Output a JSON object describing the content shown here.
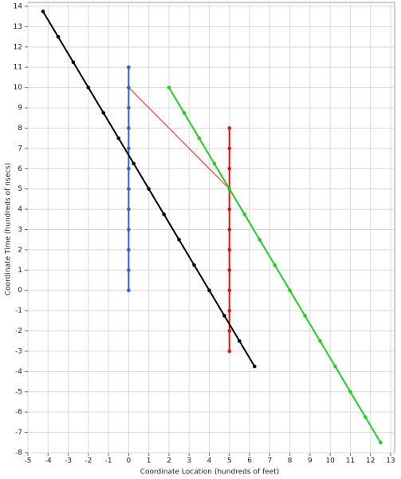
{
  "chart_data": {
    "type": "line",
    "xlabel": "Coordinate Location (hundreds of feet)",
    "ylabel": "Coordinate Time (hundreds of nsecs)",
    "xlim": [
      -5,
      13
    ],
    "ylim": [
      -8,
      14
    ],
    "xticks": [
      -5,
      -4,
      -3,
      -2,
      -1,
      0,
      1,
      2,
      3,
      4,
      5,
      6,
      7,
      8,
      9,
      10,
      11,
      12,
      13
    ],
    "yticks": [
      -8,
      -7,
      -6,
      -5,
      -4,
      -3,
      -2,
      -1,
      0,
      1,
      2,
      3,
      4,
      5,
      6,
      7,
      8,
      9,
      10,
      11,
      12,
      13,
      14
    ],
    "grid": true,
    "series": [
      {
        "color": "#ff2020",
        "width": 1,
        "markers": false,
        "x": [
          0,
          5
        ],
        "values": [
          10,
          5
        ]
      },
      {
        "color": "#2f62c8",
        "width": 2,
        "markers": true,
        "x": [
          0,
          0,
          0,
          0,
          0,
          0,
          0,
          0,
          0,
          0,
          0,
          0
        ],
        "values": [
          0,
          1,
          2,
          3,
          4,
          5,
          6,
          7,
          8,
          9,
          10,
          11
        ]
      },
      {
        "color": "#e81010",
        "width": 2,
        "markers": true,
        "x": [
          5,
          5,
          5,
          5,
          5,
          5,
          5,
          5,
          5,
          5,
          5,
          5
        ],
        "values": [
          -3,
          -2,
          -1,
          0,
          1,
          2,
          3,
          4,
          5,
          6,
          7,
          8
        ]
      },
      {
        "color": "#000000",
        "width": 2,
        "markers": true,
        "x": [
          -4.25,
          -3.5,
          -2.75,
          -2,
          -1.25,
          -0.5,
          0.25,
          1,
          1.75,
          2.5,
          3.25,
          4,
          4.75,
          5.5,
          6.25
        ],
        "values": [
          13.75,
          12.5,
          11.25,
          10,
          8.75,
          7.5,
          6.25,
          5,
          3.75,
          2.5,
          1.25,
          0,
          -1.25,
          -2.5,
          -3.75
        ]
      },
      {
        "color": "#22cc22",
        "width": 2,
        "markers": true,
        "x": [
          2,
          2.75,
          3.5,
          4.25,
          5,
          5.75,
          6.5,
          7.25,
          8,
          8.75,
          9.5,
          10.25,
          11,
          11.75,
          12.5
        ],
        "values": [
          10,
          8.75,
          7.5,
          6.25,
          5,
          3.75,
          2.5,
          1.25,
          0,
          -1.25,
          -2.5,
          -3.75,
          -5,
          -6.25,
          -7.5
        ]
      }
    ]
  }
}
